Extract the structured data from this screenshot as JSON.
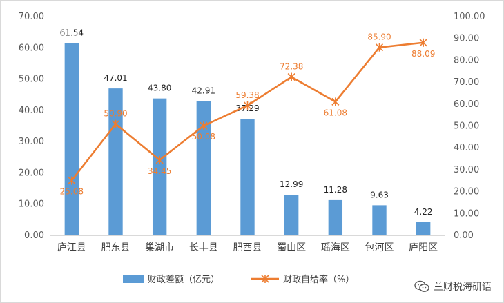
{
  "chart_data": {
    "type": "bar",
    "categories": [
      "庐江县",
      "肥东县",
      "巢湖市",
      "长丰县",
      "肥西县",
      "蜀山区",
      "瑶海区",
      "包河区",
      "庐阳区"
    ],
    "series": [
      {
        "name": "财政差额（亿元）",
        "type": "bar",
        "axis": "left",
        "color": "#5b9bd5",
        "values": [
          61.54,
          47.01,
          43.8,
          42.91,
          37.29,
          12.99,
          11.28,
          9.63,
          4.22
        ],
        "labels": [
          "61.54",
          "47.01",
          "43.80",
          "42.91",
          "37.29",
          "12.99",
          "11.28",
          "9.63",
          "4.22"
        ]
      },
      {
        "name": "财政自给率（%）",
        "type": "line",
        "axis": "right",
        "color": "#ed7d31",
        "values": [
          25.08,
          50.9,
          34.45,
          50.08,
          59.38,
          72.38,
          61.08,
          85.9,
          88.09
        ],
        "labels": [
          "25.08",
          "50.90",
          "34.45",
          "50.08",
          "59.38",
          "72.38",
          "61.08",
          "85.90",
          "88.09"
        ]
      }
    ],
    "y_left": {
      "min": 0,
      "max": 70,
      "step": 10,
      "ticks": [
        "0.00",
        "10.00",
        "20.00",
        "30.00",
        "40.00",
        "50.00",
        "60.00",
        "70.00"
      ]
    },
    "y_right": {
      "min": 0,
      "max": 100,
      "step": 10,
      "ticks": [
        "0.00",
        "10.00",
        "20.00",
        "30.00",
        "40.00",
        "50.00",
        "60.00",
        "70.00",
        "80.00",
        "90.00",
        "100.00"
      ]
    },
    "grid": false,
    "legend": "bottom"
  },
  "watermark": {
    "text": "兰财税海研语"
  }
}
